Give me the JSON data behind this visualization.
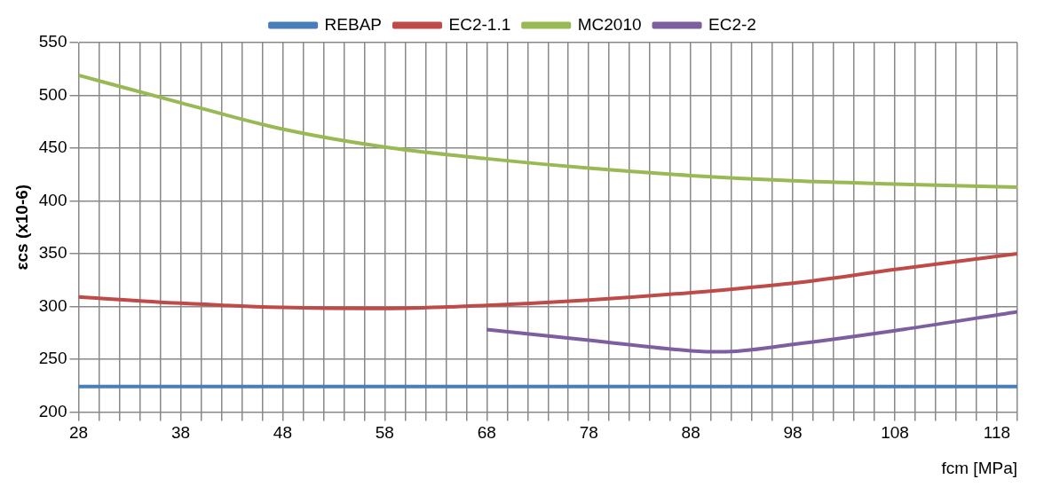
{
  "chart_data": {
    "type": "line",
    "xlabel": "fcm [MPa]",
    "ylabel": "εcs (x10-6)",
    "xlim": [
      28,
      120
    ],
    "ylim": [
      200,
      550
    ],
    "yticks": [
      200,
      250,
      300,
      350,
      400,
      450,
      500,
      550
    ],
    "xticks": [
      28,
      {
        "value": 30,
        "label": null
      },
      {
        "value": 32,
        "label": null
      },
      {
        "value": 34,
        "label": null
      },
      {
        "value": 36,
        "label": null
      },
      38,
      {
        "value": 40,
        "label": null
      },
      {
        "value": 42,
        "label": null
      },
      {
        "value": 44,
        "label": null
      },
      {
        "value": 46,
        "label": null
      },
      48,
      {
        "value": 50,
        "label": null
      },
      {
        "value": 52,
        "label": null
      },
      {
        "value": 54,
        "label": null
      },
      {
        "value": 56,
        "label": null
      },
      58,
      {
        "value": 60,
        "label": null
      },
      {
        "value": 62,
        "label": null
      },
      {
        "value": 64,
        "label": null
      },
      {
        "value": 66,
        "label": null
      },
      68,
      {
        "value": 70,
        "label": null
      },
      {
        "value": 72,
        "label": null
      },
      {
        "value": 74,
        "label": null
      },
      {
        "value": 76,
        "label": null
      },
      78,
      {
        "value": 80,
        "label": null
      },
      {
        "value": 82,
        "label": null
      },
      {
        "value": 84,
        "label": null
      },
      {
        "value": 86,
        "label": null
      },
      88,
      {
        "value": 90,
        "label": null
      },
      {
        "value": 92,
        "label": null
      },
      {
        "value": 94,
        "label": null
      },
      {
        "value": 96,
        "label": null
      },
      98,
      {
        "value": 100,
        "label": null
      },
      {
        "value": 102,
        "label": null
      },
      {
        "value": 104,
        "label": null
      },
      {
        "value": 106,
        "label": null
      },
      108,
      {
        "value": 110,
        "label": null
      },
      {
        "value": 112,
        "label": null
      },
      {
        "value": 114,
        "label": null
      },
      {
        "value": 116,
        "label": null
      },
      118,
      {
        "value": 120,
        "label": null
      }
    ],
    "grid": true,
    "legend": "top",
    "marker": "none",
    "line_style": "solid",
    "series": [
      {
        "name": "REBAP",
        "color": "#4a7ebb",
        "x": [
          28,
          120
        ],
        "values": [
          224,
          224
        ]
      },
      {
        "name": "EC2-1.1",
        "color": "#be4b48",
        "x": [
          28,
          38,
          48,
          58,
          68,
          78,
          88,
          98,
          108,
          120
        ],
        "values": [
          309,
          303,
          299,
          298,
          301,
          306,
          313,
          322,
          335,
          350
        ]
      },
      {
        "name": "MC2010",
        "color": "#98b954",
        "x": [
          28,
          38,
          48,
          58,
          68,
          78,
          88,
          98,
          108,
          120
        ],
        "values": [
          519,
          493,
          468,
          451,
          440,
          431,
          424,
          419,
          416,
          413
        ]
      },
      {
        "name": "EC2-2",
        "color": "#7d5fa0",
        "x": [
          68,
          78,
          88,
          91,
          98,
          108,
          120
        ],
        "values": [
          278,
          268,
          258,
          257,
          264,
          277,
          295
        ]
      }
    ]
  }
}
